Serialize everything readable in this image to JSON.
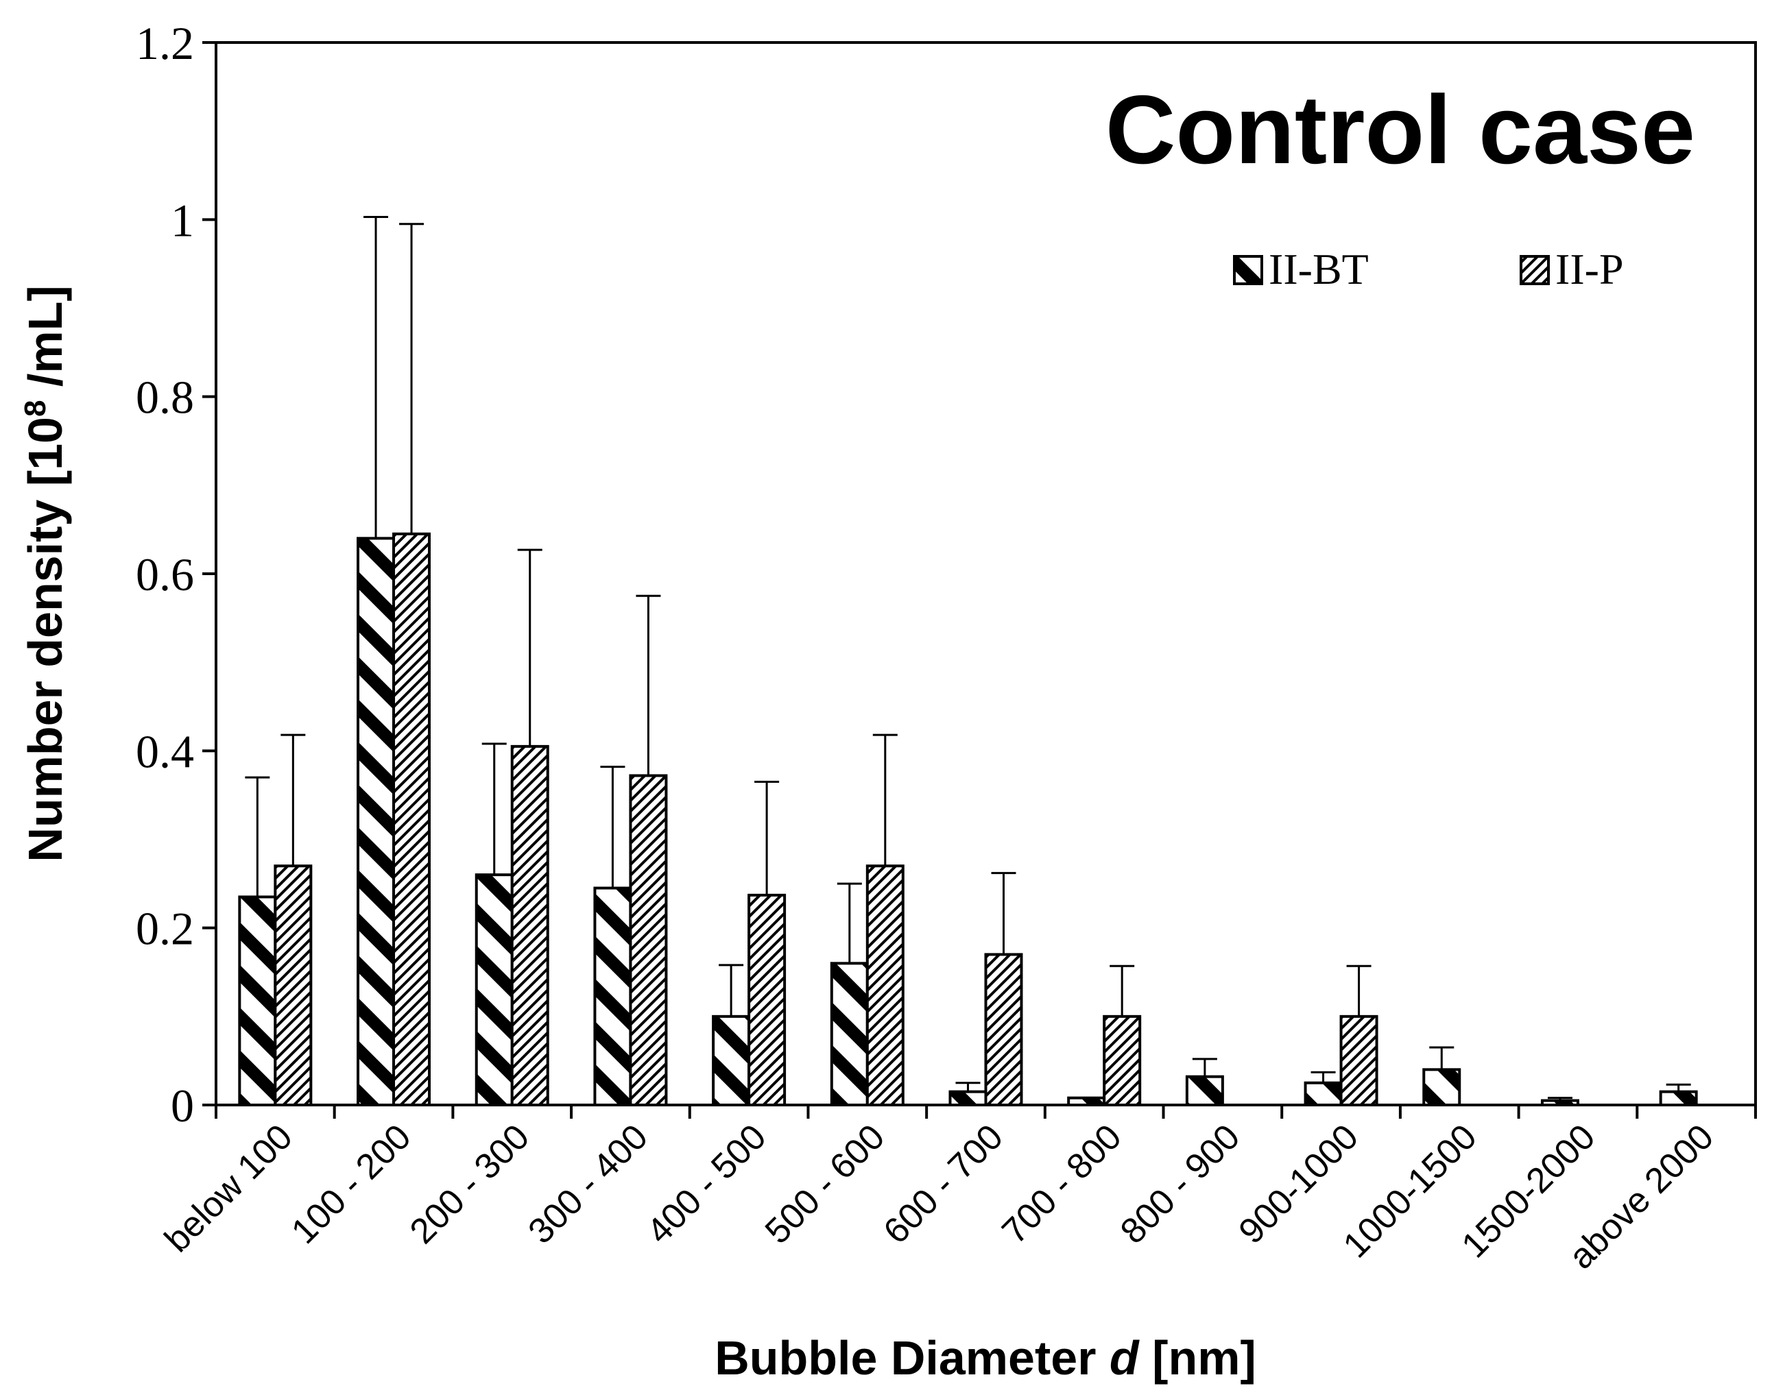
{
  "chart_data": {
    "type": "bar",
    "title": "Control case",
    "xlabel_prefix": "Bubble Diameter ",
    "xlabel_var": "d",
    "xlabel_suffix": " [nm]",
    "ylabel_main": "Number density [10",
    "ylabel_sup": "8",
    "ylabel_end": " /mL]",
    "ylim": [
      0,
      1.2
    ],
    "yticks": [
      0,
      0.2,
      0.4,
      0.6,
      0.8,
      1,
      1.2
    ],
    "ytick_labels": [
      "0",
      "0.2",
      "0.4",
      "0.6",
      "0.8",
      "1",
      "1.2"
    ],
    "categories": [
      "below 100",
      "100 - 200",
      "200 - 300",
      "300 - 400",
      "400 - 500",
      "500 - 600",
      "600 - 700",
      "700 - 800",
      "800 - 900",
      "900-1000",
      "1000-1500",
      "1500-2000",
      "above 2000"
    ],
    "series": [
      {
        "name": "II-BT",
        "pattern": "bold-diagonal",
        "values": [
          0.235,
          0.64,
          0.26,
          0.245,
          0.1,
          0.16,
          0.015,
          0.008,
          0.032,
          0.025,
          0.04,
          0.005,
          0.015
        ],
        "error": [
          0.135,
          0.363,
          0.148,
          0.137,
          0.058,
          0.09,
          0.01,
          0.0,
          0.02,
          0.012,
          0.025,
          0.003,
          0.008
        ]
      },
      {
        "name": "II-P",
        "pattern": "fine-diagonal",
        "values": [
          0.27,
          0.645,
          0.405,
          0.372,
          0.237,
          0.27,
          0.17,
          0.1,
          0.0,
          0.1,
          0.0,
          0.0,
          0.0
        ],
        "error": [
          0.148,
          0.35,
          0.222,
          0.203,
          0.128,
          0.148,
          0.092,
          0.057,
          0.0,
          0.057,
          0.0,
          0.0,
          0.0
        ]
      }
    ],
    "legend_position": "top-right",
    "grid": false
  },
  "colors": {
    "axis": "#000000",
    "bar_fill": "#ffffff",
    "pattern": "#000000"
  }
}
